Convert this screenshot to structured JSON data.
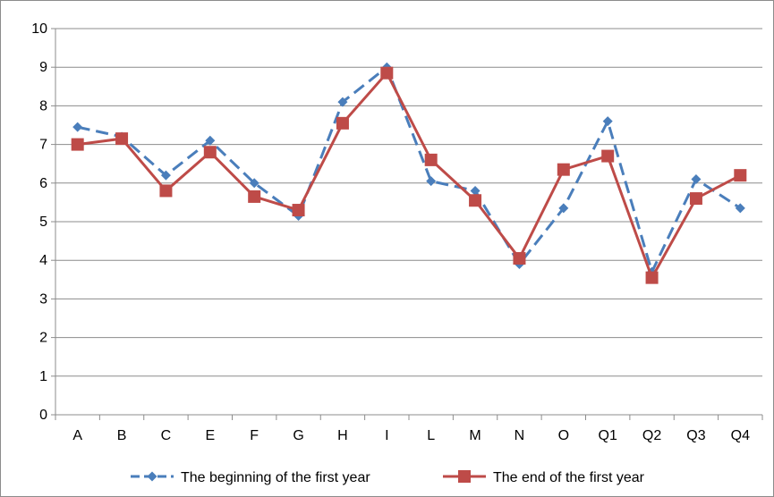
{
  "chart_data": {
    "type": "line",
    "title": "",
    "xlabel": "",
    "ylabel": "",
    "categories": [
      "A",
      "B",
      "C",
      "E",
      "F",
      "G",
      "H",
      "I",
      "L",
      "M",
      "N",
      "O",
      "Q1",
      "Q2",
      "Q3",
      "Q4"
    ],
    "ylim": [
      0,
      10
    ],
    "yticks": [
      "0",
      "1",
      "2",
      "3",
      "4",
      "5",
      "6",
      "7",
      "8",
      "9",
      "10"
    ],
    "grid": true,
    "legend_position": "bottom",
    "series": [
      {
        "name": "The beginning of the first year",
        "color": "#4a7ebb",
        "line_style": "dashed",
        "marker": "diamond",
        "values": [
          7.45,
          7.2,
          6.2,
          7.1,
          6.0,
          5.15,
          8.1,
          9.0,
          6.05,
          5.8,
          3.9,
          5.35,
          7.6,
          3.7,
          6.1,
          5.35
        ]
      },
      {
        "name": "The end of the first year",
        "color": "#be4b48",
        "line_style": "solid",
        "marker": "square",
        "values": [
          7.0,
          7.15,
          5.8,
          6.8,
          5.65,
          5.3,
          7.55,
          8.85,
          6.6,
          5.55,
          4.05,
          6.35,
          6.7,
          3.55,
          5.6,
          6.2
        ]
      }
    ]
  }
}
